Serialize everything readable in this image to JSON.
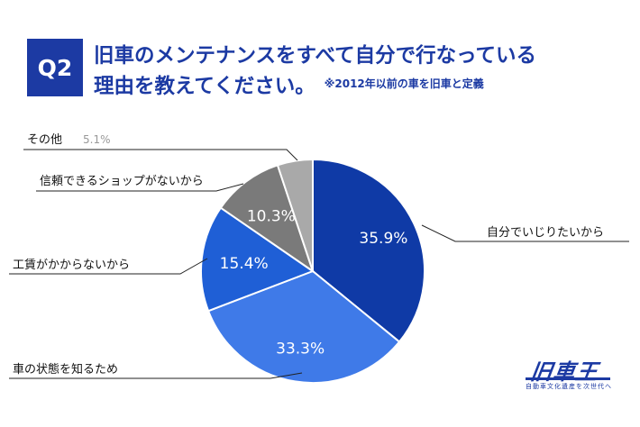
{
  "header": {
    "badge": "Q2",
    "title_line1": "旧車のメンテナンスをすべて自分で行なっている",
    "title_line2": "理由を教えてください。",
    "note": "※2012年以前の車を旧車と定義"
  },
  "chart_data": {
    "type": "pie",
    "title": "旧車のメンテナンスをすべて自分で行なっている理由を教えてください。",
    "unit": "%",
    "slices": [
      {
        "label": "自分でいじりたいから",
        "value": 35.9,
        "display": "35.9%",
        "color": "#0f3aa6"
      },
      {
        "label": "車の状態を知るため",
        "value": 33.3,
        "display": "33.3%",
        "color": "#3f7ae8"
      },
      {
        "label": "工賃がかからないから",
        "value": 15.4,
        "display": "15.4%",
        "color": "#1f5fd6"
      },
      {
        "label": "信頼できるショップがないから",
        "value": 10.3,
        "display": "10.3%",
        "color": "#7a7a7a"
      },
      {
        "label": "その他",
        "value": 5.1,
        "display": "5.1%",
        "color": "#a9a9a9"
      }
    ]
  },
  "logo": {
    "mark": "旧車王",
    "tagline": "自動車文化遺産を次世代へ"
  }
}
